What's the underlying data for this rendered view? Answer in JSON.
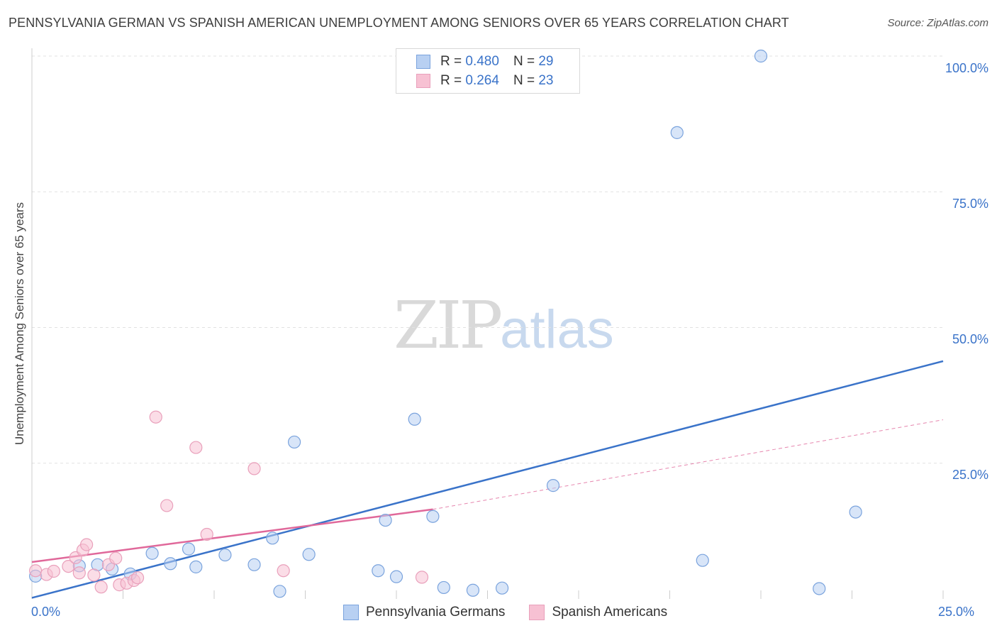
{
  "title": "PENNSYLVANIA GERMAN VS SPANISH AMERICAN UNEMPLOYMENT AMONG SENIORS OVER 65 YEARS CORRELATION CHART",
  "source": "Source: ZipAtlas.com",
  "watermark": {
    "zip": "ZIP",
    "atlas": "atlas"
  },
  "legend": {
    "rows": [
      {
        "r_label": "R =",
        "r_value": "0.480",
        "n_label": "N =",
        "n_value": "29"
      },
      {
        "r_label": "R =",
        "r_value": "0.264",
        "n_label": "N =",
        "n_value": "23"
      }
    ]
  },
  "bottom_legend": {
    "blue": "Pennsylvania Germans",
    "pink": "Spanish Americans"
  },
  "chart_data": {
    "type": "scatter",
    "title": "PENNSYLVANIA GERMAN VS SPANISH AMERICAN UNEMPLOYMENT AMONG SENIORS OVER 65 YEARS CORRELATION CHART",
    "ylabel": "Unemployment Among Seniors over 65 years",
    "xlabel": "",
    "xlim": [
      0,
      25
    ],
    "ylim": [
      0,
      100
    ],
    "x_tick_labels": [
      "0.0%",
      "25.0%"
    ],
    "y_tick_labels": [
      "100.0%",
      "75.0%",
      "50.0%",
      "25.0%"
    ],
    "y_ticks": [
      100,
      75,
      50,
      25
    ],
    "grid": true,
    "colors": {
      "blue": "#3a73c9",
      "blue_fill": "#b8d0f2",
      "pink": "#e0689a",
      "pink_fill": "#f7c1d3"
    },
    "series": [
      {
        "name": "Pennsylvania Germans",
        "color": "#3a73c9",
        "points": [
          [
            0.1,
            4.2
          ],
          [
            1.3,
            6.1
          ],
          [
            1.8,
            6.3
          ],
          [
            2.2,
            5.5
          ],
          [
            2.7,
            4.6
          ],
          [
            3.3,
            8.4
          ],
          [
            3.8,
            6.5
          ],
          [
            4.3,
            9.2
          ],
          [
            4.5,
            5.9
          ],
          [
            5.3,
            8.1
          ],
          [
            6.1,
            6.3
          ],
          [
            6.6,
            11.2
          ],
          [
            6.8,
            1.4
          ],
          [
            7.2,
            28.9
          ],
          [
            7.6,
            8.2
          ],
          [
            9.7,
            14.5
          ],
          [
            9.5,
            5.2
          ],
          [
            10.0,
            4.1
          ],
          [
            10.5,
            33.1
          ],
          [
            11.0,
            15.2
          ],
          [
            11.3,
            2.1
          ],
          [
            12.1,
            1.6
          ],
          [
            12.9,
            2.0
          ],
          [
            14.3,
            20.9
          ],
          [
            17.7,
            85.9
          ],
          [
            18.4,
            7.1
          ],
          [
            20.0,
            100.0
          ],
          [
            21.6,
            1.9
          ],
          [
            22.6,
            16.0
          ]
        ]
      },
      {
        "name": "Spanish Americans",
        "color": "#e0689a",
        "points": [
          [
            0.1,
            5.2
          ],
          [
            0.4,
            4.5
          ],
          [
            0.6,
            5.1
          ],
          [
            1.0,
            6.0
          ],
          [
            1.2,
            7.6
          ],
          [
            1.3,
            4.8
          ],
          [
            1.4,
            9.0
          ],
          [
            1.5,
            10.0
          ],
          [
            1.7,
            4.4
          ],
          [
            1.9,
            2.2
          ],
          [
            2.1,
            6.3
          ],
          [
            2.3,
            7.5
          ],
          [
            2.4,
            2.6
          ],
          [
            2.6,
            2.9
          ],
          [
            2.8,
            3.4
          ],
          [
            2.9,
            3.9
          ],
          [
            3.4,
            33.5
          ],
          [
            3.7,
            17.2
          ],
          [
            4.5,
            27.9
          ],
          [
            4.8,
            11.9
          ],
          [
            6.1,
            24.0
          ],
          [
            6.9,
            5.2
          ],
          [
            10.7,
            4.0
          ]
        ]
      }
    ],
    "trendlines": [
      {
        "series": "Pennsylvania Germans",
        "x": [
          0,
          25
        ],
        "y": [
          0.2,
          43.8
        ],
        "style": "solid"
      },
      {
        "series": "Spanish Americans",
        "x": [
          0,
          11
        ],
        "y": [
          6.8,
          16.5
        ],
        "style": "solid"
      },
      {
        "series": "Spanish Americans",
        "x": [
          11,
          25
        ],
        "y": [
          16.5,
          33.0
        ],
        "style": "dashed"
      }
    ]
  }
}
